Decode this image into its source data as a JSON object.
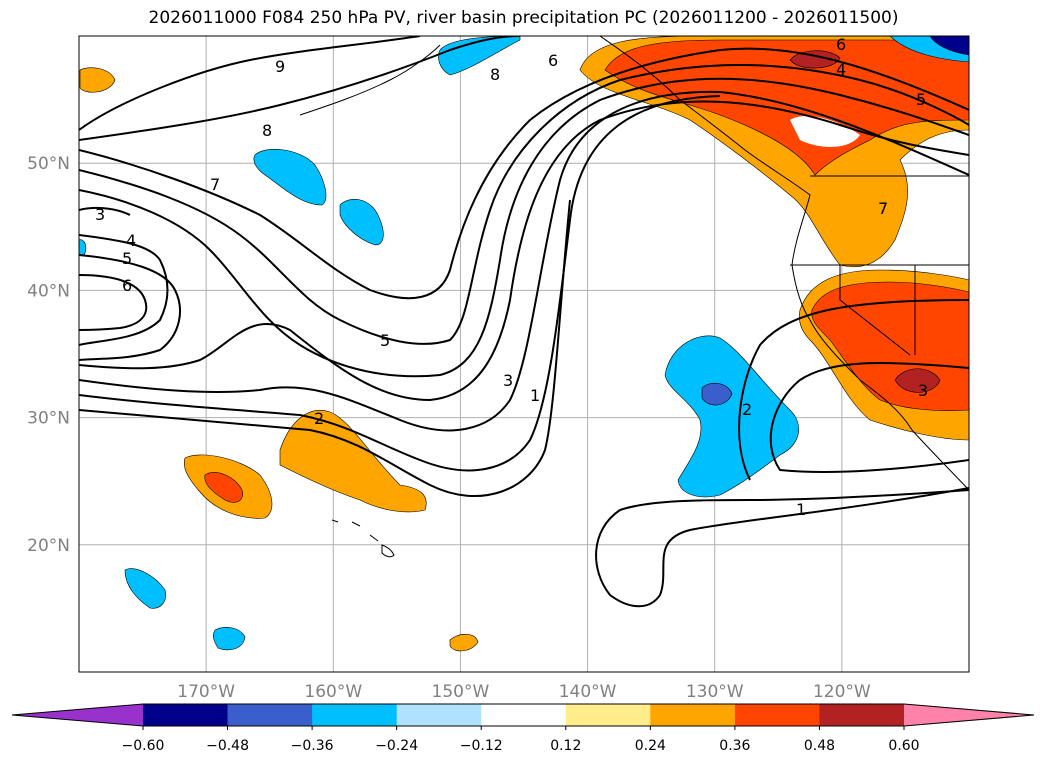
{
  "title": "2026011000 F084 250 hPa PV, river basin precipitation PC (2026011200 - 2026011500)",
  "map": {
    "projection": "lat-lon",
    "lon_range": [
      -180,
      -110
    ],
    "lat_range": [
      10,
      60
    ],
    "lon_ticks": [
      {
        "value": -170,
        "label": "170°W"
      },
      {
        "value": -160,
        "label": "160°W"
      },
      {
        "value": -150,
        "label": "150°W"
      },
      {
        "value": -140,
        "label": "140°W"
      },
      {
        "value": -130,
        "label": "130°W"
      },
      {
        "value": -120,
        "label": "120°W"
      }
    ],
    "lat_ticks": [
      {
        "value": 20,
        "label": "20°N"
      },
      {
        "value": 30,
        "label": "30°N"
      },
      {
        "value": 40,
        "label": "40°N"
      },
      {
        "value": 50,
        "label": "50°N"
      }
    ],
    "contour_labels": [
      "9",
      "8",
      "8",
      "6",
      "6",
      "4",
      "5",
      "7",
      "3",
      "4",
      "5",
      "6",
      "5",
      "3",
      "1",
      "2",
      "2",
      "1",
      "7",
      "3"
    ]
  },
  "colorbar": {
    "ticks": [
      "−0.60",
      "−0.48",
      "−0.36",
      "−0.24",
      "−0.12",
      "0.12",
      "0.24",
      "0.36",
      "0.48",
      "0.60"
    ],
    "colors": [
      "#9932cc",
      "#00008b",
      "#3a5fcd",
      "#00bfff",
      "#b0e2ff",
      "#ffffff",
      "#ffec8b",
      "#ffa500",
      "#ff4500",
      "#b22222",
      "#ff82ab"
    ]
  }
}
